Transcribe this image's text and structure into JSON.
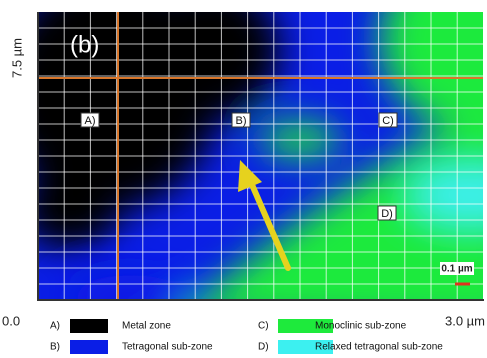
{
  "figure": {
    "panel_label": "(b)",
    "y_axis_label": "7.5 µm",
    "x_axis_start": "0.0",
    "x_axis_end": "3.0 µm",
    "scale_bar": "0.1 µm",
    "zone_markers": [
      "A)",
      "B)",
      "C)",
      "D)"
    ],
    "legend": [
      {
        "key": "A)",
        "label": "Metal zone",
        "color": "#000000"
      },
      {
        "key": "B)",
        "label": "Tetragonal sub-zone",
        "color": "#0a1ee6"
      },
      {
        "key": "C)",
        "label": "Monoclinic sub-zone",
        "color": "#1eea3c"
      },
      {
        "key": "D)",
        "label": "Relaxed tetragonal sub-zone",
        "color": "#3cf0f0"
      }
    ]
  }
}
